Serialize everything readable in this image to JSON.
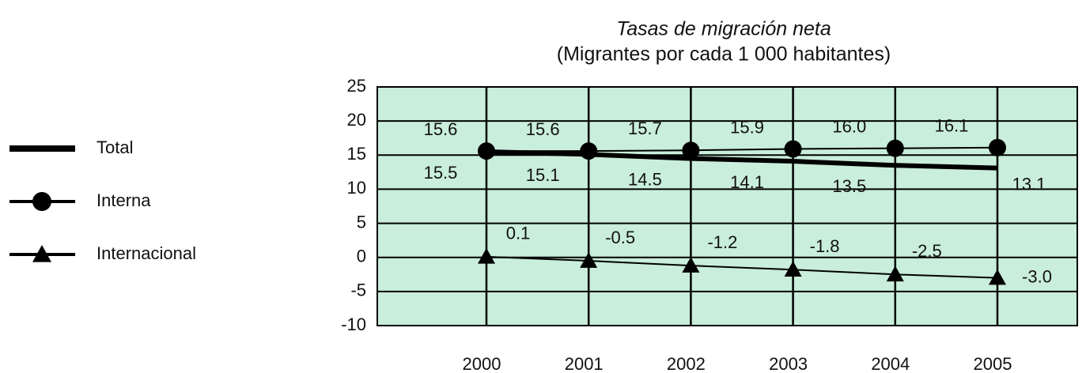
{
  "chart_data": {
    "type": "line",
    "title": "Tasas de migración neta",
    "subtitle": "(Migrantes por cada 1 000 habitantes)",
    "categories": [
      "2000",
      "2001",
      "2002",
      "2003",
      "2004",
      "2005"
    ],
    "series": [
      {
        "name": "Total",
        "color": "#000000",
        "marker": "none",
        "line_width": 6,
        "values": [
          15.5,
          15.1,
          14.5,
          14.1,
          13.5,
          13.1
        ],
        "value_labels": [
          "15.5",
          "15.1",
          "14.5",
          "14.1",
          "13.5",
          "13.1"
        ]
      },
      {
        "name": "Interna",
        "color": "#000000",
        "marker": "circle",
        "line_width": 2,
        "values": [
          15.6,
          15.6,
          15.7,
          15.9,
          16.0,
          16.1
        ],
        "value_labels": [
          "15.6",
          "15.6",
          "15.7",
          "15.9",
          "16.0",
          "16.1"
        ]
      },
      {
        "name": "Internacional",
        "color": "#000000",
        "marker": "triangle",
        "line_width": 2,
        "values": [
          0.1,
          -0.5,
          -1.2,
          -1.8,
          -2.5,
          -3.0
        ],
        "value_labels": [
          "0.1",
          "-0.5",
          "-1.2",
          "-1.8",
          "-2.5",
          "-3.0"
        ]
      }
    ],
    "ylim": [
      -10,
      25
    ],
    "yticks": [
      -10,
      -5,
      0,
      5,
      10,
      15,
      20,
      25
    ],
    "grid": true,
    "plot_background": "#c9eedb",
    "legend": "left"
  }
}
